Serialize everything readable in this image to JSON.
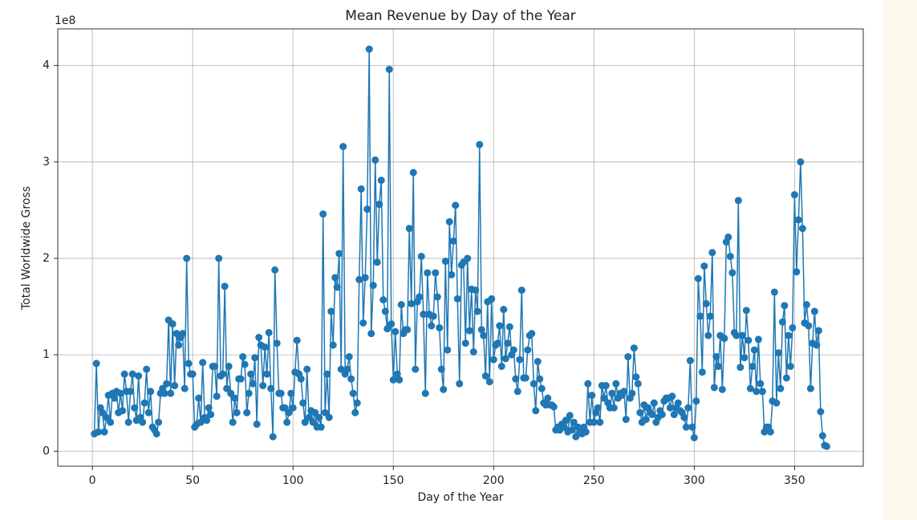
{
  "chart_data": {
    "type": "line",
    "title": "Mean Revenue by Day of the Year",
    "x_label": "Day of the Year",
    "y_label": "Total Worldwide Gross",
    "offset_label": "1e8",
    "color": "#1f77b4",
    "grid": true,
    "xlim": [
      -17.25,
      384.25
    ],
    "xticks": [
      0,
      50,
      100,
      150,
      200,
      250,
      300,
      350
    ],
    "ylim": [
      -0.156,
      4.38
    ],
    "yticks": [
      0,
      1,
      2,
      3,
      4
    ],
    "x": [
      1,
      2,
      3,
      4,
      5,
      6,
      7,
      8,
      9,
      10,
      11,
      12,
      13,
      14,
      15,
      16,
      17,
      18,
      19,
      20,
      21,
      22,
      23,
      24,
      25,
      26,
      27,
      28,
      29,
      30,
      31,
      32,
      33,
      34,
      35,
      36,
      37,
      38,
      39,
      40,
      41,
      42,
      43,
      44,
      45,
      46,
      47,
      48,
      49,
      50,
      51,
      52,
      53,
      54,
      55,
      56,
      57,
      58,
      59,
      60,
      61,
      62,
      63,
      64,
      65,
      66,
      67,
      68,
      69,
      70,
      71,
      72,
      73,
      74,
      75,
      76,
      77,
      78,
      79,
      80,
      81,
      82,
      83,
      84,
      85,
      86,
      87,
      88,
      89,
      90,
      91,
      92,
      93,
      94,
      95,
      96,
      97,
      98,
      99,
      100,
      101,
      102,
      103,
      104,
      105,
      106,
      107,
      108,
      109,
      110,
      111,
      112,
      113,
      114,
      115,
      116,
      117,
      118,
      119,
      120,
      121,
      122,
      123,
      124,
      125,
      126,
      127,
      128,
      129,
      130,
      131,
      132,
      133,
      134,
      135,
      136,
      137,
      138,
      139,
      140,
      141,
      142,
      143,
      144,
      145,
      146,
      147,
      148,
      149,
      150,
      151,
      152,
      153,
      154,
      155,
      156,
      157,
      158,
      159,
      160,
      161,
      162,
      163,
      164,
      165,
      166,
      167,
      168,
      169,
      170,
      171,
      172,
      173,
      174,
      175,
      176,
      177,
      178,
      179,
      180,
      181,
      182,
      183,
      184,
      185,
      186,
      187,
      188,
      189,
      190,
      191,
      192,
      193,
      194,
      195,
      196,
      197,
      198,
      199,
      200,
      201,
      202,
      203,
      204,
      205,
      206,
      207,
      208,
      209,
      210,
      211,
      212,
      213,
      214,
      215,
      216,
      217,
      218,
      219,
      220,
      221,
      222,
      223,
      224,
      225,
      226,
      227,
      228,
      229,
      230,
      231,
      232,
      233,
      234,
      235,
      236,
      237,
      238,
      239,
      240,
      241,
      242,
      243,
      244,
      245,
      246,
      247,
      248,
      249,
      250,
      251,
      252,
      253,
      254,
      255,
      256,
      257,
      258,
      259,
      260,
      261,
      262,
      263,
      264,
      265,
      266,
      267,
      268,
      269,
      270,
      271,
      272,
      273,
      274,
      275,
      276,
      277,
      278,
      279,
      280,
      281,
      282,
      283,
      284,
      285,
      286,
      287,
      288,
      289,
      290,
      291,
      292,
      293,
      294,
      295,
      296,
      297,
      298,
      299,
      300,
      301,
      302,
      303,
      304,
      305,
      306,
      307,
      308,
      309,
      310,
      311,
      312,
      313,
      314,
      315,
      316,
      317,
      318,
      319,
      320,
      321,
      322,
      323,
      324,
      325,
      326,
      327,
      328,
      329,
      330,
      331,
      332,
      333,
      334,
      335,
      336,
      337,
      338,
      339,
      340,
      341,
      342,
      343,
      344,
      345,
      346,
      347,
      348,
      349,
      350,
      351,
      352,
      353,
      354,
      355,
      356,
      357,
      358,
      359,
      360,
      361,
      362,
      363,
      364,
      365,
      366
    ],
    "values": [
      0.18,
      0.91,
      0.2,
      0.45,
      0.4,
      0.2,
      0.35,
      0.58,
      0.3,
      0.6,
      0.55,
      0.62,
      0.4,
      0.6,
      0.42,
      0.8,
      0.62,
      0.3,
      0.62,
      0.8,
      0.45,
      0.32,
      0.78,
      0.35,
      0.3,
      0.5,
      0.85,
      0.4,
      0.62,
      0.25,
      0.22,
      0.18,
      0.3,
      0.6,
      0.65,
      0.6,
      0.7,
      1.36,
      0.6,
      1.32,
      0.68,
      1.22,
      1.1,
      1.18,
      1.22,
      0.65,
      2.0,
      0.91,
      0.8,
      0.8,
      0.25,
      0.28,
      0.55,
      0.3,
      0.92,
      0.35,
      0.32,
      0.45,
      0.38,
      0.88,
      0.88,
      0.57,
      2.0,
      0.78,
      0.8,
      1.71,
      0.65,
      0.88,
      0.6,
      0.3,
      0.55,
      0.4,
      0.75,
      0.75,
      0.98,
      0.9,
      0.4,
      0.6,
      0.8,
      0.7,
      0.97,
      0.28,
      1.18,
      1.1,
      0.68,
      1.08,
      0.8,
      1.23,
      0.65,
      0.15,
      1.88,
      1.12,
      0.6,
      0.6,
      0.45,
      0.45,
      0.3,
      0.4,
      0.6,
      0.45,
      0.82,
      1.15,
      0.8,
      0.75,
      0.5,
      0.3,
      0.85,
      0.35,
      0.42,
      0.3,
      0.4,
      0.25,
      0.35,
      0.25,
      2.46,
      0.4,
      0.8,
      0.35,
      1.45,
      1.1,
      1.8,
      1.7,
      2.05,
      0.85,
      3.16,
      0.8,
      0.85,
      0.98,
      0.75,
      0.6,
      0.4,
      0.5,
      1.78,
      2.72,
      1.33,
      1.8,
      2.51,
      4.17,
      1.22,
      1.72,
      3.02,
      1.96,
      2.56,
      2.81,
      1.57,
      1.45,
      1.27,
      3.96,
      1.32,
      0.74,
      1.24,
      0.8,
      0.74,
      1.52,
      1.22,
      1.26,
      1.26,
      2.31,
      1.53,
      2.89,
      0.85,
      1.55,
      1.6,
      2.02,
      1.42,
      0.6,
      1.85,
      1.42,
      1.3,
      1.4,
      1.85,
      1.6,
      1.28,
      0.85,
      0.64,
      1.97,
      1.05,
      2.38,
      1.83,
      2.18,
      2.55,
      1.58,
      0.7,
      1.93,
      1.96,
      1.12,
      2.0,
      1.25,
      1.68,
      1.03,
      1.67,
      1.45,
      3.18,
      1.26,
      1.2,
      0.78,
      1.55,
      0.72,
      1.58,
      0.95,
      1.1,
      1.12,
      1.3,
      0.88,
      1.47,
      0.96,
      1.12,
      1.29,
      1.0,
      1.05,
      0.75,
      0.62,
      0.95,
      1.67,
      0.76,
      0.76,
      1.05,
      1.2,
      1.22,
      0.7,
      0.42,
      0.93,
      0.75,
      0.65,
      0.5,
      0.48,
      0.55,
      0.48,
      0.48,
      0.46,
      0.22,
      0.25,
      0.22,
      0.28,
      0.25,
      0.32,
      0.2,
      0.37,
      0.22,
      0.3,
      0.15,
      0.25,
      0.2,
      0.18,
      0.25,
      0.2,
      0.7,
      0.3,
      0.58,
      0.3,
      0.4,
      0.45,
      0.3,
      0.68,
      0.55,
      0.68,
      0.5,
      0.45,
      0.6,
      0.45,
      0.7,
      0.55,
      0.6,
      0.58,
      0.62,
      0.33,
      0.98,
      0.55,
      0.6,
      1.07,
      0.77,
      0.7,
      0.4,
      0.3,
      0.48,
      0.33,
      0.45,
      0.4,
      0.38,
      0.5,
      0.3,
      0.35,
      0.42,
      0.38,
      0.52,
      0.55,
      0.55,
      0.45,
      0.57,
      0.38,
      0.45,
      0.5,
      0.42,
      0.4,
      0.35,
      0.25,
      0.45,
      0.94,
      0.25,
      0.14,
      0.52,
      1.79,
      1.4,
      0.82,
      1.92,
      1.53,
      1.2,
      1.4,
      2.06,
      0.66,
      0.98,
      0.88,
      1.2,
      0.64,
      1.17,
      2.17,
      2.22,
      2.02,
      1.85,
      1.23,
      1.2,
      2.6,
      0.87,
      1.2,
      0.97,
      1.46,
      1.15,
      0.65,
      0.88,
      1.05,
      0.62,
      1.16,
      0.7,
      0.62,
      0.2,
      0.25,
      0.25,
      0.2,
      0.52,
      1.65,
      0.5,
      1.02,
      0.65,
      1.34,
      1.51,
      0.76,
      1.2,
      0.88,
      1.28,
      2.66,
      1.86,
      2.4,
      3.0,
      2.31,
      1.33,
      1.52,
      1.3,
      0.65,
      1.12,
      1.45,
      1.1,
      1.25,
      0.41,
      0.16,
      0.06,
      0.05
    ]
  }
}
